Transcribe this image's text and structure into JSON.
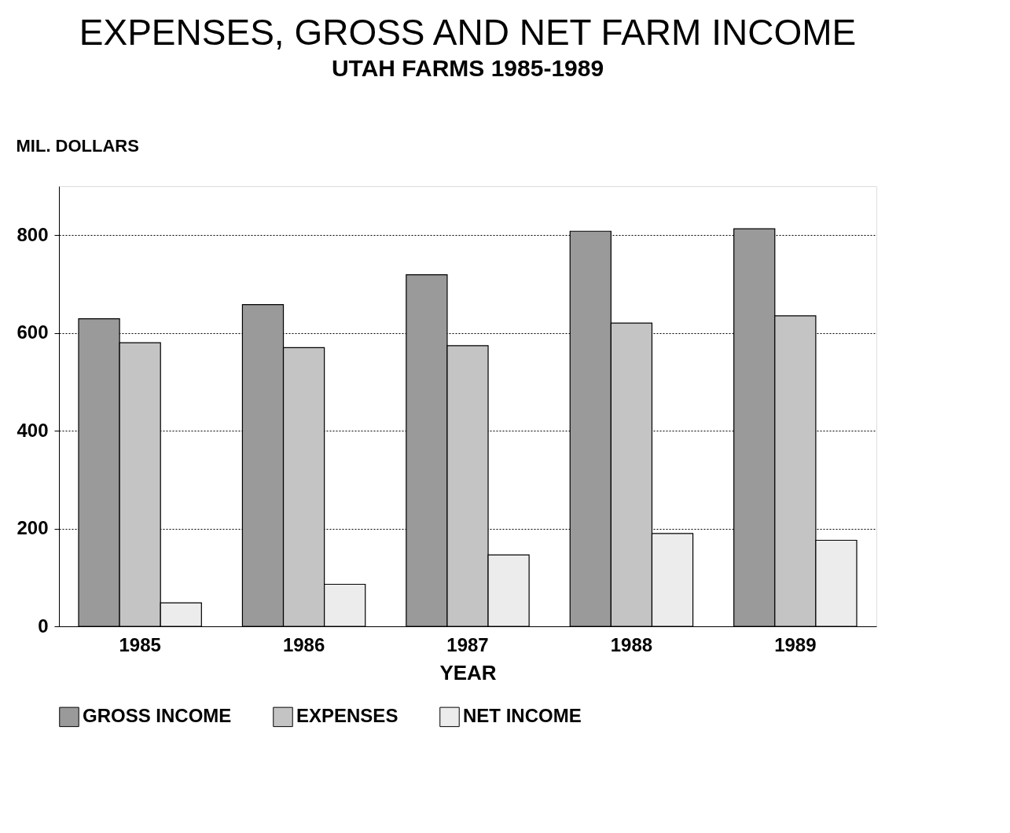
{
  "chart_data": {
    "type": "bar",
    "title": "EXPENSES, GROSS AND NET FARM INCOME",
    "subtitle": "UTAH FARMS 1985-1989",
    "xlabel": "YEAR",
    "ylabel": "MIL. DOLLARS",
    "categories": [
      "1985",
      "1986",
      "1987",
      "1988",
      "1989"
    ],
    "series": [
      {
        "name": "GROSS INCOME",
        "color": "#9a9a9a",
        "values": [
          629,
          658,
          719,
          808,
          813
        ]
      },
      {
        "name": "EXPENSES",
        "color": "#c4c4c4",
        "values": [
          580,
          570,
          574,
          620,
          635
        ]
      },
      {
        "name": "NET INCOME",
        "color": "#ececec",
        "values": [
          48,
          86,
          146,
          190,
          176
        ]
      }
    ],
    "ylim": [
      0,
      900
    ],
    "yticks": [
      0,
      200,
      400,
      600,
      800
    ],
    "grid": "y",
    "legend": "bottom"
  }
}
